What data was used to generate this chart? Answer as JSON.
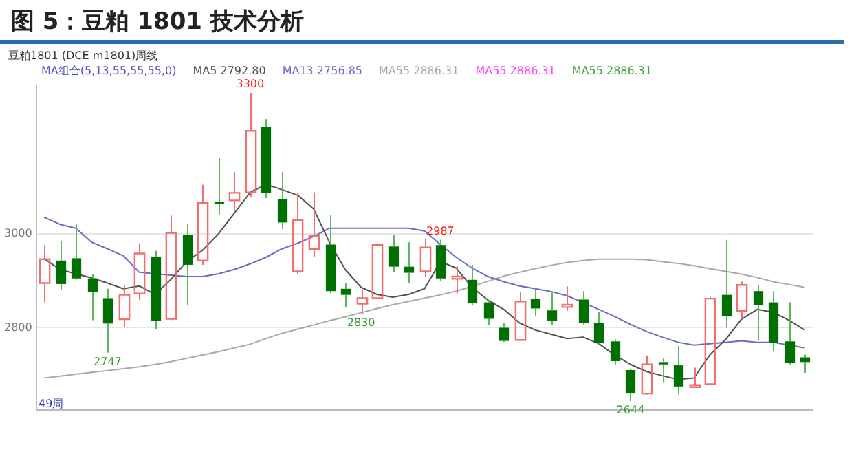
{
  "chart_data": {
    "type": "candlestick",
    "title": "图 5：豆粕 1801 技术分析",
    "categories": [
      null,
      null,
      null,
      null,
      null,
      null,
      null,
      null,
      null,
      null,
      null,
      null,
      null,
      null,
      null,
      null,
      null,
      null,
      null,
      null,
      null,
      null,
      null,
      null,
      null,
      null,
      null,
      null,
      null,
      null,
      null,
      null,
      null,
      null,
      null,
      null,
      null,
      null,
      null,
      null,
      null,
      null,
      null,
      null,
      null,
      null,
      null,
      null,
      null
    ],
    "ohlc": [
      [
        2895,
        2976,
        2854,
        2946
      ],
      [
        2943,
        2985,
        2881,
        2893
      ],
      [
        2948,
        3020,
        2902,
        2905
      ],
      [
        2905,
        2914,
        2816,
        2876
      ],
      [
        2863,
        2883,
        2747,
        2809
      ],
      [
        2818,
        2890,
        2802,
        2870
      ],
      [
        2873,
        2980,
        2859,
        2958
      ],
      [
        2950,
        2964,
        2797,
        2815
      ],
      [
        2819,
        3039,
        2816,
        3002
      ],
      [
        2997,
        3020,
        2849,
        2934
      ],
      [
        2943,
        3104,
        2934,
        3066
      ],
      [
        3068,
        3161,
        3041,
        3064
      ],
      [
        3071,
        3132,
        3049,
        3087
      ],
      [
        3088,
        3300,
        3078,
        3219
      ],
      [
        3228,
        3244,
        3076,
        3086
      ],
      [
        3073,
        3132,
        3010,
        3024
      ],
      [
        2920,
        3088,
        2915,
        3029
      ],
      [
        2968,
        3088,
        2951,
        2995
      ],
      [
        2977,
        3039,
        2873,
        2878
      ],
      [
        2883,
        2895,
        2844,
        2870
      ],
      [
        2851,
        2880,
        2830,
        2863
      ],
      [
        2863,
        2980,
        2861,
        2976
      ],
      [
        2973,
        2997,
        2919,
        2930
      ],
      [
        2930,
        2982,
        2895,
        2917
      ],
      [
        2920,
        2990,
        2909,
        2971
      ],
      [
        2976,
        2987,
        2900,
        2905
      ],
      [
        2904,
        2932,
        2873,
        2909
      ],
      [
        2902,
        2934,
        2849,
        2853
      ],
      [
        2854,
        2859,
        2805,
        2819
      ],
      [
        2800,
        2810,
        2770,
        2772
      ],
      [
        2774,
        2876,
        2772,
        2856
      ],
      [
        2862,
        2883,
        2824,
        2841
      ],
      [
        2837,
        2875,
        2805,
        2815
      ],
      [
        2844,
        2888,
        2836,
        2849
      ],
      [
        2860,
        2878,
        2807,
        2810
      ],
      [
        2810,
        2834,
        2766,
        2768
      ],
      [
        2771,
        2775,
        2722,
        2729
      ],
      [
        2710,
        2712,
        2644,
        2660
      ],
      [
        2660,
        2741,
        2658,
        2722
      ],
      [
        2727,
        2736,
        2683,
        2722
      ],
      [
        2720,
        2761,
        2658,
        2675
      ],
      [
        2675,
        2715,
        2672,
        2678
      ],
      [
        2680,
        2866,
        2678,
        2862
      ],
      [
        2870,
        2987,
        2800,
        2824
      ],
      [
        2836,
        2898,
        2819,
        2891
      ],
      [
        2878,
        2891,
        2774,
        2849
      ],
      [
        2854,
        2878,
        2751,
        2768
      ],
      [
        2771,
        2854,
        2722,
        2725
      ],
      [
        2737,
        2743,
        2704,
        2727
      ]
    ],
    "series": [
      {
        "type": "line",
        "name": "MA5 2792.80",
        "color": "#505050",
        "values": [
          2947,
          2924,
          2915,
          2906,
          2895,
          2883,
          2889,
          2871,
          2903,
          2941,
          2965,
          3000,
          3044,
          3088,
          3105,
          3094,
          3082,
          3053,
          2982,
          2924,
          2886,
          2871,
          2865,
          2871,
          2883,
          2941,
          2927,
          2886,
          2859,
          2839,
          2810,
          2795,
          2786,
          2777,
          2780,
          2766,
          2742,
          2722,
          2707,
          2698,
          2690,
          2693,
          2742,
          2775,
          2818,
          2839,
          2833,
          2816,
          2795
        ]
      },
      {
        "type": "line",
        "name": "MA13 2756.85",
        "color": "#6a6ac8",
        "values": [
          3035,
          3020,
          3012,
          2982,
          2968,
          2953,
          2918,
          2915,
          2912,
          2909,
          2909,
          2915,
          2924,
          2936,
          2950,
          2968,
          2980,
          2994,
          3012,
          3012,
          3012,
          3012,
          3012,
          3012,
          3006,
          2977,
          2950,
          2927,
          2909,
          2898,
          2889,
          2883,
          2877,
          2868,
          2854,
          2839,
          2824,
          2807,
          2792,
          2780,
          2769,
          2763,
          2766,
          2769,
          2772,
          2769,
          2769,
          2763,
          2757
        ]
      },
      {
        "type": "line",
        "name": "MA55 2886.31",
        "color": "#a8a8a8",
        "values": [
          2693,
          2697,
          2701,
          2705,
          2709,
          2713,
          2717,
          2722,
          2728,
          2735,
          2742,
          2749,
          2757,
          2765,
          2777,
          2788,
          2797,
          2806,
          2815,
          2823,
          2832,
          2841,
          2849,
          2856,
          2863,
          2870,
          2878,
          2888,
          2899,
          2910,
          2918,
          2926,
          2933,
          2939,
          2943,
          2946,
          2946,
          2946,
          2945,
          2941,
          2937,
          2932,
          2926,
          2920,
          2914,
          2907,
          2898,
          2892,
          2886
        ]
      }
    ],
    "ylim": [
      2625,
      3316
    ],
    "yticks": [
      2800,
      3000
    ],
    "grid": "y",
    "tick_labels": "y",
    "legend": "top left",
    "annotations": [
      "豆粕1801 (DCE m1801)周线",
      "MA组合(5,13,55,55,55,0)",
      "MA55 2886.31",
      "MA55 2886.31",
      "49周",
      {
        "text": "3300",
        "y": 3300
      },
      {
        "text": "2747",
        "y": 2747
      },
      {
        "text": "2830",
        "y": 2830
      },
      {
        "text": "2644",
        "y": 2644
      },
      {
        "text": "2987",
        "y": 2987
      }
    ]
  }
}
